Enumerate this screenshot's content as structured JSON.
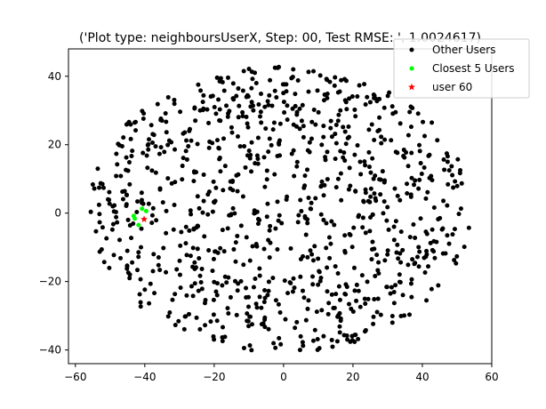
{
  "chart_data": {
    "type": "scatter",
    "title": "('Plot type: neighboursUserX, Step: 00, Test RMSE: ', 1.0024617)",
    "xlabel": "",
    "ylabel": "",
    "xlim": [
      -62,
      60
    ],
    "ylim": [
      -44,
      48
    ],
    "xticks": [
      -60,
      -40,
      -20,
      0,
      20,
      40,
      60
    ],
    "yticks": [
      -40,
      -20,
      0,
      20,
      40
    ],
    "xtick_labels": [
      "−60",
      "−40",
      "−20",
      "0",
      "20",
      "40",
      "60"
    ],
    "ytick_labels": [
      "−40",
      "−20",
      "0",
      "20",
      "40"
    ],
    "grid": false,
    "legend_position": "top-right",
    "series": [
      {
        "name": "Other Users",
        "color": "#000000",
        "marker": "dot",
        "note": "≈940 points in a roughly circular cloud spanning x −56…54, y −41…43",
        "cloud": {
          "x_range": [
            -56,
            54
          ],
          "y_range": [
            -41,
            43
          ],
          "count": 940
        },
        "points": []
      },
      {
        "name": "Closest 5 Users",
        "color": "#00ff00",
        "marker": "dot",
        "points": [
          {
            "x": -43.2,
            "y": -0.8
          },
          {
            "x": -42.9,
            "y": -1.6
          },
          {
            "x": -40.8,
            "y": 1.3
          },
          {
            "x": -39.6,
            "y": 0.6
          },
          {
            "x": -41.8,
            "y": -3.5
          }
        ]
      },
      {
        "name": "user 60",
        "color": "#ff0000",
        "marker": "star",
        "points": [
          {
            "x": -40.2,
            "y": -1.8
          }
        ]
      }
    ]
  }
}
